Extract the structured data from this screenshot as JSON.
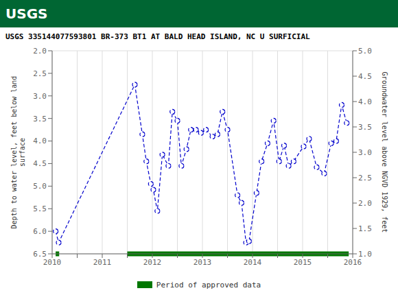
{
  "chart_data": {
    "type": "line",
    "title": "USGS 335144077593801 BR-373 BT1 AT BALD HEAD ISLAND, NC U SURFICIAL",
    "annotations": [
      "USGS"
    ],
    "ylabel": "Depth to water level, feet below land\nsurface",
    "y2label": "Groundwater level above NGVD 1929, feet",
    "x": [
      2010.07,
      2010.13,
      2011.65,
      2011.8,
      2011.88,
      2011.97,
      2012.02,
      2012.1,
      2012.2,
      2012.32,
      2012.4,
      2012.5,
      2012.58,
      2012.68,
      2012.77,
      2012.87,
      2012.97,
      2013.07,
      2013.2,
      2013.3,
      2013.4,
      2013.5,
      2013.7,
      2013.78,
      2013.87,
      2013.93,
      2014.08,
      2014.18,
      2014.3,
      2014.42,
      2014.53,
      2014.63,
      2014.72,
      2014.82,
      2015.02,
      2015.13,
      2015.28,
      2015.43,
      2015.57,
      2015.67,
      2015.78,
      2015.88
    ],
    "series": [
      {
        "type": "line",
        "color": "#0000cc",
        "line_style": "dashed",
        "marker": "circle",
        "values": [
          6.0,
          6.25,
          2.75,
          3.85,
          4.45,
          4.95,
          5.08,
          5.55,
          4.3,
          4.55,
          3.35,
          3.55,
          4.55,
          4.18,
          3.75,
          3.75,
          3.82,
          3.75,
          3.9,
          3.85,
          3.35,
          3.75,
          5.2,
          5.37,
          6.25,
          6.22,
          5.15,
          4.45,
          4.05,
          3.55,
          4.45,
          4.1,
          4.55,
          4.45,
          4.12,
          3.95,
          4.58,
          4.72,
          4.05,
          4.0,
          3.2,
          3.6
        ]
      },
      {
        "type": "span",
        "name": "Period of approved data",
        "color": "#007700",
        "spans": [
          [
            2010.07,
            2010.14
          ],
          [
            2011.5,
            2015.92
          ]
        ]
      }
    ],
    "xlim": [
      2010.0,
      2016.0
    ],
    "xticks": [
      2010,
      {
        "value": 2010.5,
        "label": null
      },
      2011,
      {
        "value": 2011.5,
        "label": null
      },
      2012,
      {
        "value": 2012.5,
        "label": null
      },
      2013,
      {
        "value": 2013.5,
        "label": null
      },
      2014,
      {
        "value": 2014.5,
        "label": null
      },
      2015,
      {
        "value": 2015.5,
        "label": null
      },
      2016
    ],
    "ylim": [
      6.5,
      2.0
    ],
    "yticks": [
      {
        "value": 2.0,
        "label": "2.0"
      },
      2.5,
      {
        "value": 3.0,
        "label": "3.0"
      },
      3.5,
      {
        "value": 4.0,
        "label": "4.0"
      },
      4.5,
      {
        "value": 5.0,
        "label": "5.0"
      },
      5.5,
      {
        "value": 6.0,
        "label": "6.0"
      },
      6.5
    ],
    "y2lim": [
      1.0,
      5.0
    ],
    "y2ticks": [
      {
        "value": 5.0,
        "label": "5.0"
      },
      4.5,
      {
        "value": 4.0,
        "label": "4.0"
      },
      3.5,
      {
        "value": 3.0,
        "label": "3.0"
      },
      2.5,
      {
        "value": 2.0,
        "label": "2.0"
      },
      1.5,
      {
        "value": 1.0,
        "label": "1.0"
      }
    ],
    "grid": true,
    "legend": "bottom"
  }
}
